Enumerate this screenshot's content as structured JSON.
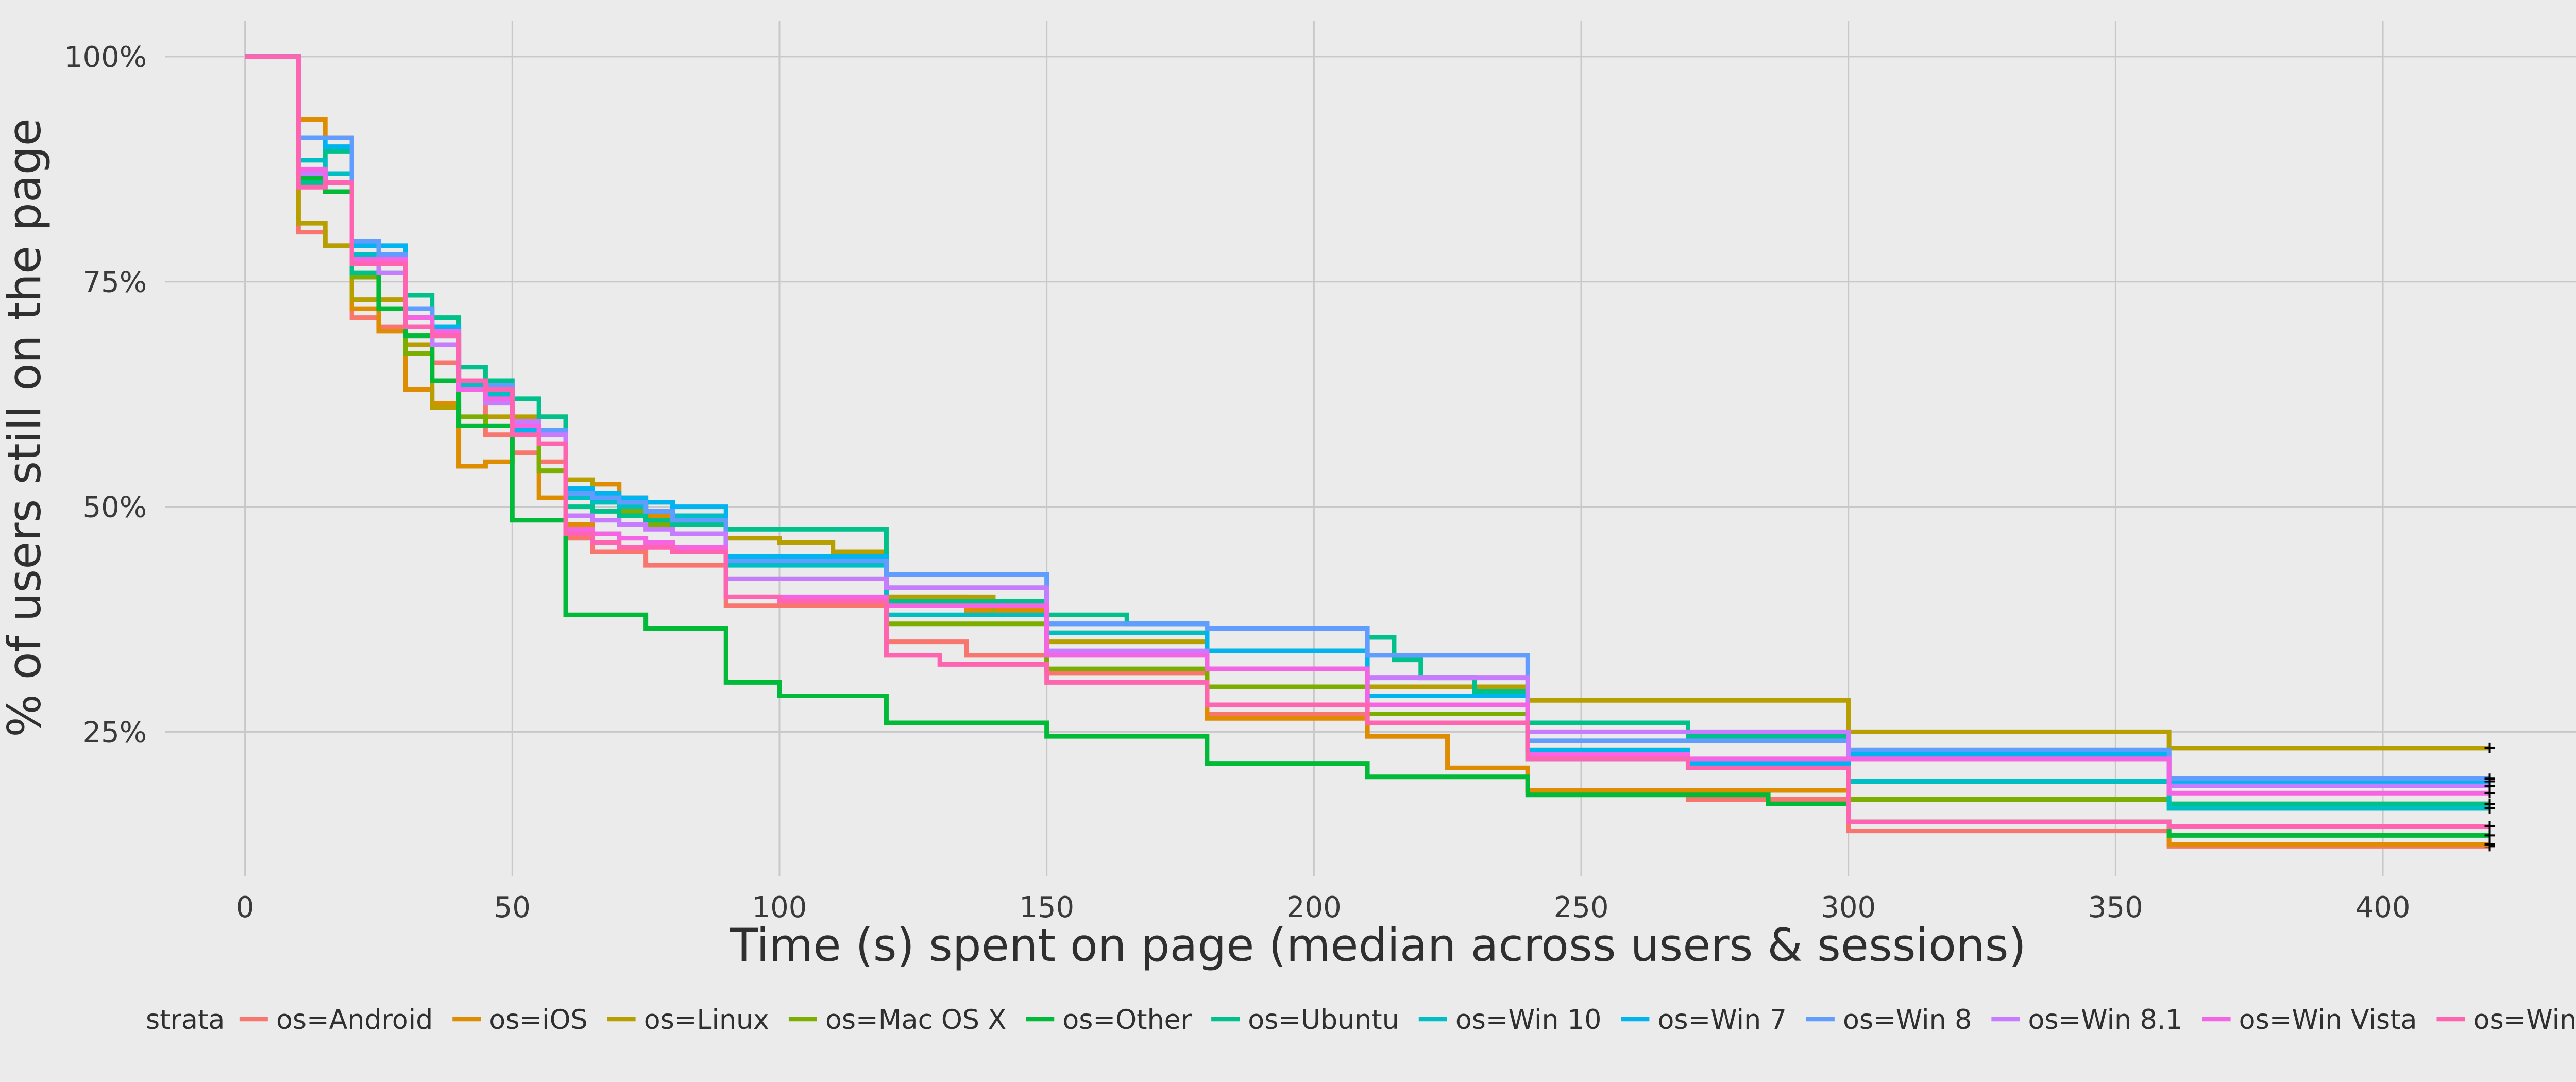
{
  "chart_data": {
    "type": "line",
    "step": true,
    "xlabel": "Time (s) spent on page (median across users & sessions)",
    "ylabel": "% of users still on the page",
    "xlim": [
      -15,
      440
    ],
    "ylim": [
      9,
      104
    ],
    "x_ticks": [
      0,
      50,
      100,
      150,
      200,
      250,
      300,
      350,
      400
    ],
    "x_tick_labels": [
      "0",
      "50",
      "100",
      "150",
      "200",
      "250",
      "300",
      "350",
      "400"
    ],
    "y_ticks": [
      25,
      50,
      75,
      100
    ],
    "y_tick_labels": [
      "25%",
      "50%",
      "75%",
      "100%"
    ],
    "grid": true,
    "legend_position": "bottom",
    "legend_title": "strata",
    "series": [
      {
        "name": "os=Android",
        "color": "#F8766D",
        "x": [
          0,
          10,
          15,
          20,
          25,
          30,
          35,
          40,
          45,
          50,
          55,
          60,
          65,
          75,
          90,
          120,
          135,
          150,
          180,
          210,
          225,
          240,
          270,
          300,
          360,
          420
        ],
        "y": [
          100,
          80.5,
          79,
          71,
          70,
          69,
          66,
          63.5,
          58,
          56,
          55,
          46.5,
          45,
          43.5,
          39,
          35,
          33.5,
          31.5,
          27,
          24.5,
          21,
          18.5,
          17.5,
          14,
          12.3,
          12.3
        ]
      },
      {
        "name": "os=iOS",
        "color": "#DE8C00",
        "x": [
          0,
          10,
          15,
          20,
          25,
          30,
          35,
          40,
          45,
          50,
          55,
          60,
          65,
          70,
          75,
          80,
          90,
          120,
          135,
          150,
          180,
          210,
          225,
          240,
          300,
          360,
          420
        ],
        "y": [
          100,
          93,
          91,
          72,
          69.5,
          63,
          61.5,
          54.5,
          55,
          59,
          51,
          48,
          52.5,
          51,
          49,
          48,
          44,
          40,
          38.5,
          36,
          26.5,
          24.5,
          21,
          18.5,
          15,
          12.5,
          12.5
        ]
      },
      {
        "name": "os=Linux",
        "color": "#B79F00",
        "x": [
          0,
          10,
          15,
          20,
          25,
          30,
          35,
          40,
          45,
          50,
          55,
          60,
          65,
          70,
          75,
          80,
          90,
          100,
          110,
          120,
          140,
          150,
          180,
          210,
          240,
          300,
          360,
          420
        ],
        "y": [
          100,
          81.5,
          79,
          73,
          73,
          68,
          61,
          59,
          60,
          60,
          60,
          53,
          51,
          50.5,
          49.5,
          48,
          46.5,
          46,
          45,
          40,
          38,
          35,
          34,
          30,
          28.5,
          25,
          23.2,
          23.2
        ]
      },
      {
        "name": "os=Mac OS X",
        "color": "#7CAE00",
        "x": [
          0,
          10,
          15,
          20,
          25,
          30,
          35,
          40,
          45,
          50,
          55,
          60,
          65,
          70,
          75,
          80,
          90,
          120,
          150,
          180,
          210,
          240,
          270,
          300,
          360,
          420
        ],
        "y": [
          100,
          86,
          87,
          75.5,
          72,
          67,
          64,
          60,
          59,
          59,
          54,
          52,
          51,
          49.5,
          48,
          47,
          42,
          37,
          32,
          30,
          27,
          23,
          21,
          17.5,
          17,
          17
        ]
      },
      {
        "name": "os=Other",
        "color": "#00BA38",
        "x": [
          0,
          10,
          15,
          20,
          25,
          30,
          35,
          40,
          45,
          50,
          55,
          60,
          75,
          90,
          100,
          120,
          150,
          180,
          210,
          240,
          285,
          300,
          360,
          420
        ],
        "y": [
          100,
          86.5,
          85,
          76,
          72,
          69,
          64,
          59,
          59,
          48.5,
          48.5,
          38,
          36.5,
          30.5,
          29,
          26,
          24.5,
          21.5,
          20,
          18,
          17,
          15,
          13.5,
          13.5
        ]
      },
      {
        "name": "os=Ubuntu",
        "color": "#00C08B",
        "x": [
          0,
          10,
          15,
          20,
          25,
          30,
          35,
          40,
          45,
          50,
          55,
          60,
          65,
          70,
          75,
          80,
          90,
          120,
          150,
          165,
          180,
          210,
          215,
          220,
          230,
          240,
          270,
          300,
          360,
          420
        ],
        "y": [
          100,
          86,
          89.5,
          76,
          76,
          73.5,
          71,
          65.5,
          64,
          62,
          60,
          50,
          49.5,
          49,
          48.5,
          48,
          47.5,
          39.5,
          38,
          37,
          34,
          35.5,
          33,
          31,
          29.5,
          26,
          24.5,
          23,
          17,
          17
        ]
      },
      {
        "name": "os=Win 10",
        "color": "#00BFC4",
        "x": [
          0,
          10,
          15,
          20,
          25,
          30,
          35,
          40,
          45,
          50,
          55,
          60,
          65,
          70,
          75,
          80,
          90,
          120,
          150,
          180,
          210,
          240,
          270,
          300,
          360,
          420
        ],
        "y": [
          100,
          88.5,
          87,
          78,
          77,
          72,
          70,
          63.5,
          62.5,
          58,
          58,
          51,
          50.5,
          50,
          49.5,
          49,
          43.5,
          38,
          36,
          32,
          28,
          22,
          21,
          19.5,
          16.5,
          16.5
        ]
      },
      {
        "name": "os=Win 7",
        "color": "#00B4F0",
        "x": [
          0,
          10,
          15,
          20,
          25,
          30,
          35,
          40,
          45,
          50,
          55,
          60,
          65,
          70,
          75,
          80,
          90,
          120,
          150,
          180,
          210,
          240,
          270,
          300,
          360,
          420
        ],
        "y": [
          100,
          91,
          90,
          79,
          79,
          71,
          70,
          64,
          63,
          58.5,
          58.5,
          52,
          51.5,
          51,
          50.5,
          50,
          44.5,
          41,
          37,
          34,
          29,
          23,
          21.5,
          22.5,
          19.5,
          19.5
        ]
      },
      {
        "name": "os=Win 8",
        "color": "#619CFF",
        "x": [
          0,
          10,
          15,
          20,
          25,
          30,
          35,
          40,
          45,
          50,
          55,
          60,
          65,
          70,
          75,
          80,
          90,
          120,
          150,
          180,
          210,
          240,
          300,
          360,
          420
        ],
        "y": [
          100,
          91,
          91,
          79.5,
          78,
          72,
          69,
          64,
          63.5,
          59,
          58.5,
          51.5,
          51,
          50.5,
          49.5,
          48.5,
          44,
          42.5,
          37,
          36.5,
          33.5,
          24,
          23,
          19.8,
          19.8
        ]
      },
      {
        "name": "os=Win 8.1",
        "color": "#C77CFF",
        "x": [
          0,
          10,
          15,
          20,
          25,
          30,
          35,
          40,
          45,
          50,
          55,
          60,
          65,
          70,
          75,
          80,
          90,
          120,
          150,
          180,
          210,
          240,
          300,
          360,
          420
        ],
        "y": [
          100,
          87,
          86,
          77,
          76,
          70,
          68,
          64,
          61.5,
          59.5,
          58,
          49,
          48.5,
          48,
          47.5,
          47,
          42,
          41,
          34,
          32,
          31,
          25,
          22,
          19,
          19
        ]
      },
      {
        "name": "os=Win Vista",
        "color": "#F564E3",
        "x": [
          0,
          10,
          15,
          20,
          25,
          30,
          35,
          40,
          45,
          50,
          55,
          60,
          65,
          70,
          75,
          80,
          90,
          120,
          150,
          180,
          210,
          240,
          270,
          300,
          360,
          420
        ],
        "y": [
          100,
          87.5,
          86,
          77.5,
          77.5,
          71,
          69.5,
          63,
          62,
          59,
          57,
          47.5,
          47,
          46.5,
          46,
          45.5,
          40,
          39,
          33.5,
          32,
          28,
          22.5,
          22,
          22,
          18.2,
          18.2
        ]
      },
      {
        "name": "os=Win XP",
        "color": "#FF64B0",
        "x": [
          0,
          10,
          15,
          20,
          25,
          30,
          35,
          40,
          45,
          50,
          55,
          60,
          65,
          70,
          75,
          80,
          90,
          100,
          120,
          130,
          150,
          180,
          210,
          240,
          270,
          300,
          360,
          420
        ],
        "y": [
          100,
          85.5,
          86,
          77,
          77,
          70,
          69,
          64,
          63,
          58,
          57,
          47,
          46,
          45.5,
          45.5,
          45,
          40,
          39.5,
          33.5,
          32.5,
          30.5,
          28,
          26,
          22,
          21,
          15,
          14.5,
          14.5
        ]
      }
    ]
  }
}
